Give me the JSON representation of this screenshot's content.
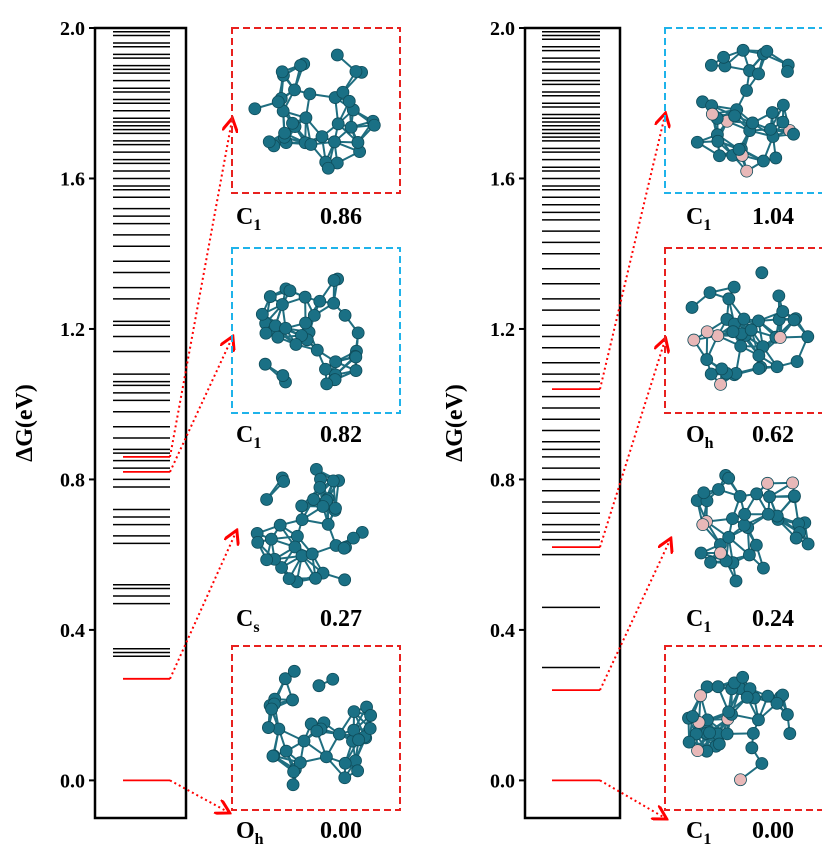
{
  "chart_data": [
    {
      "type": "energy-levels",
      "y_label": "ΔG(eV)",
      "ylim": [
        -0.1,
        2.0
      ],
      "yticks": [
        {
          "value": 0,
          "label": "0.0"
        },
        {
          "value": 0.4,
          "label": "0.4"
        },
        {
          "value": 0.8,
          "label": "0.8"
        },
        {
          "value": 1.2,
          "label": "1.2"
        },
        {
          "value": 1.6,
          "label": "1.6"
        },
        {
          "value": 2.0,
          "label": "2.0"
        }
      ],
      "level_color": "#000000",
      "highlight_color": "#ff0000",
      "levels": [
        0.33,
        0.34,
        0.35,
        0.47,
        0.49,
        0.51,
        0.52,
        0.63,
        0.65,
        0.68,
        0.7,
        0.72,
        0.78,
        0.8,
        0.83,
        0.85,
        0.87,
        0.88,
        0.91,
        0.94,
        0.98,
        1.01,
        1.03,
        1.05,
        1.06,
        1.08,
        1.14,
        1.18,
        1.21,
        1.22,
        1.28,
        1.31,
        1.35,
        1.38,
        1.42,
        1.45,
        1.48,
        1.5,
        1.52,
        1.55,
        1.57,
        1.58,
        1.6,
        1.62,
        1.64,
        1.65,
        1.67,
        1.69,
        1.7,
        1.72,
        1.73,
        1.74,
        1.75,
        1.76,
        1.78,
        1.8,
        1.81,
        1.83,
        1.84,
        1.86,
        1.88,
        1.89,
        1.9,
        1.92,
        1.93,
        1.95,
        1.96,
        1.98,
        1.99
      ],
      "annotations": [
        {
          "value": 0.86,
          "group": "C",
          "sub": "1",
          "label": "0.86",
          "frame": "#e8211f"
        },
        {
          "value": 0.82,
          "group": "C",
          "sub": "1",
          "label": "0.82",
          "frame": "#1fb3ea"
        },
        {
          "value": 0.27,
          "group": "C",
          "sub": "s",
          "label": "0.27"
        },
        {
          "value": 0,
          "group": "O",
          "sub": "h",
          "label": "0.00",
          "frame": "#e8211f"
        }
      ]
    },
    {
      "type": "energy-levels",
      "y_label": "ΔG(eV)",
      "ylim": [
        -0.1,
        2.0
      ],
      "yticks": [
        {
          "value": 0,
          "label": "0.0"
        },
        {
          "value": 0.4,
          "label": "0.4"
        },
        {
          "value": 0.8,
          "label": "0.8"
        },
        {
          "value": 1.2,
          "label": "1.2"
        },
        {
          "value": 1.6,
          "label": "1.6"
        },
        {
          "value": 2.0,
          "label": "2.0"
        }
      ],
      "level_color": "#000000",
      "highlight_color": "#ff0000",
      "levels": [
        0.3,
        0.46,
        0.6,
        0.64,
        0.66,
        0.68,
        0.71,
        0.74,
        0.77,
        0.8,
        0.83,
        0.86,
        0.88,
        0.9,
        0.93,
        0.96,
        0.99,
        1.02,
        1.06,
        1.08,
        1.11,
        1.15,
        1.18,
        1.21,
        1.21,
        1.25,
        1.28,
        1.32,
        1.36,
        1.4,
        1.43,
        1.46,
        1.49,
        1.51,
        1.53,
        1.55,
        1.57,
        1.58,
        1.6,
        1.62,
        1.63,
        1.65,
        1.67,
        1.68,
        1.7,
        1.71,
        1.72,
        1.73,
        1.74,
        1.75,
        1.76,
        1.77,
        1.79,
        1.8,
        1.82,
        1.83,
        1.85,
        1.86,
        1.88,
        1.89,
        1.91,
        1.92,
        1.94,
        1.95,
        1.97,
        1.98,
        1.99
      ],
      "annotations": [
        {
          "value": 1.04,
          "group": "C",
          "sub": "1",
          "label": "1.04",
          "frame": "#1fb3ea"
        },
        {
          "value": 0.62,
          "group": "O",
          "sub": "h",
          "label": "0.62",
          "frame": "#e8211f"
        },
        {
          "value": 0.24,
          "group": "C",
          "sub": "1",
          "label": "0.24"
        },
        {
          "value": 0,
          "group": "C",
          "sub": "1",
          "label": "0.00",
          "frame": "#e8211f"
        }
      ]
    }
  ]
}
